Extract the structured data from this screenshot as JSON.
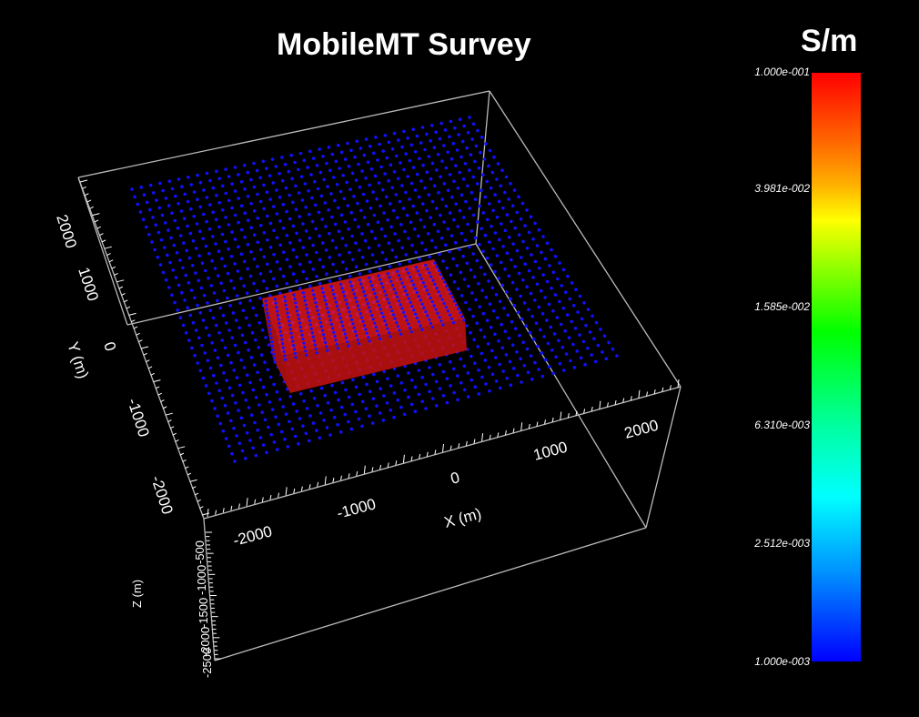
{
  "title": "MobileMT Survey",
  "colorbar": {
    "unit": "S/m",
    "ticks": [
      "1.000e-001",
      "3.981e-002",
      "1.585e-002",
      "6.310e-003",
      "2.512e-003",
      "1.000e-003"
    ]
  },
  "axes": {
    "x": {
      "label": "X (m)",
      "ticks": [
        "-2000",
        "-1000",
        "0",
        "1000",
        "2000"
      ]
    },
    "y": {
      "label": "Y (m)",
      "ticks": [
        "2000",
        "1000",
        "0",
        "-1000",
        "-2000"
      ]
    },
    "z": {
      "label": "Z (m)",
      "ticks": [
        "-500",
        "-1000",
        "-1500",
        "-2000",
        "-2500"
      ]
    }
  },
  "colors": {
    "stations": "#1010ff",
    "anomaly": "#ff1a1a",
    "box": "#bbbbbb"
  }
}
